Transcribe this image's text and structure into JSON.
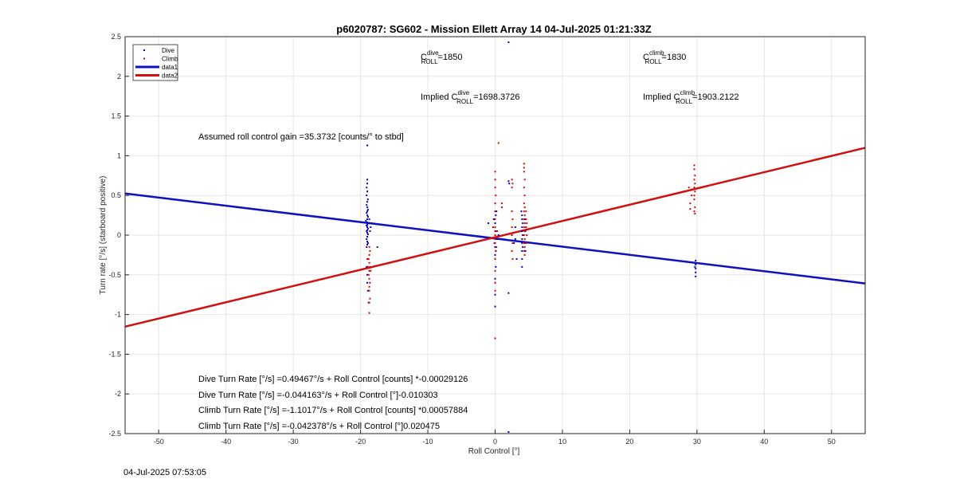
{
  "chart_data": {
    "type": "scatter",
    "title": "p6020787: SG602 - Mission Ellett Array 14 04-Jul-2025 01:21:33Z",
    "xlabel": "Roll Control [°]",
    "ylabel": "Turn rate [°/s] (starboard positive)",
    "xlim": [
      -55,
      55
    ],
    "ylim": [
      -2.5,
      2.5
    ],
    "xticks": [
      -50,
      -40,
      -30,
      -20,
      -10,
      0,
      10,
      20,
      30,
      40,
      50
    ],
    "yticks": [
      -2.5,
      -2,
      -1.5,
      -1,
      -0.5,
      0,
      0.5,
      1,
      1.5,
      2,
      2.5
    ],
    "grid": true,
    "legend_position": "top-left",
    "colors": {
      "dive": "#0000cc",
      "climb": "#dd0000",
      "data1": "#1010c0",
      "data2": "#d01010"
    },
    "legend": [
      {
        "label": "Dive",
        "kind": "point",
        "color": "#0000cc"
      },
      {
        "label": "Climb",
        "kind": "point",
        "color": "#dd0000"
      },
      {
        "label": "data1",
        "kind": "line",
        "color": "#1010c0"
      },
      {
        "label": "data2",
        "kind": "line",
        "color": "#d01010"
      }
    ],
    "series": [
      {
        "name": "Dive",
        "kind": "scatter",
        "color": "#0000cc",
        "points": [
          [
            -19,
            1.13
          ],
          [
            -19,
            0.7
          ],
          [
            -19,
            0.65
          ],
          [
            -19.1,
            0.6
          ],
          [
            -19,
            0.55
          ],
          [
            -19.1,
            0.5
          ],
          [
            -18.9,
            0.45
          ],
          [
            -19,
            0.42
          ],
          [
            -19.1,
            0.38
          ],
          [
            -19,
            0.35
          ],
          [
            -18.9,
            0.32
          ],
          [
            -19,
            0.3
          ],
          [
            -19.1,
            0.28
          ],
          [
            -19,
            0.25
          ],
          [
            -18.9,
            0.23
          ],
          [
            -19,
            0.2
          ],
          [
            -19.2,
            0.18
          ],
          [
            -19,
            0.16
          ],
          [
            -18.8,
            0.15
          ],
          [
            -19,
            0.13
          ],
          [
            -19.1,
            0.12
          ],
          [
            -19,
            0.1
          ],
          [
            -18.9,
            0.08
          ],
          [
            -19,
            0.06
          ],
          [
            -19.1,
            0.05
          ],
          [
            -19,
            0.03
          ],
          [
            -18.9,
            0.01
          ],
          [
            -19,
            -0.02
          ],
          [
            -19.1,
            -0.05
          ],
          [
            -19,
            -0.08
          ],
          [
            -18.9,
            -0.1
          ],
          [
            -19,
            -0.12
          ],
          [
            -19.1,
            -0.15
          ],
          [
            -18.5,
            0.1
          ],
          [
            -18.6,
            0.05
          ],
          [
            -18.7,
            0.2
          ],
          [
            -18.4,
            0.15
          ],
          [
            -17.5,
            -0.15
          ],
          [
            -19,
            -0.3
          ],
          [
            -19,
            -0.5
          ],
          [
            -18.9,
            -0.7
          ],
          [
            -18.8,
            -0.85
          ],
          [
            -19,
            -0.6
          ],
          [
            -19.1,
            -0.4
          ],
          [
            0,
            0.15
          ],
          [
            0,
            0.1
          ],
          [
            0.1,
            0.05
          ],
          [
            0,
            0.0
          ],
          [
            0,
            -0.05
          ],
          [
            -0.1,
            -0.1
          ],
          [
            0,
            -0.15
          ],
          [
            0.1,
            -0.2
          ],
          [
            0,
            -0.25
          ],
          [
            0,
            -0.3
          ],
          [
            0.1,
            -0.4
          ],
          [
            0,
            -0.55
          ],
          [
            0,
            -0.6
          ],
          [
            0,
            -0.75
          ],
          [
            0,
            -0.9
          ],
          [
            0.2,
            0.3
          ],
          [
            0.1,
            0.25
          ],
          [
            -0.2,
            0.2
          ],
          [
            -1,
            0.15
          ],
          [
            0.3,
            -0.05
          ],
          [
            0.5,
            0.0
          ],
          [
            2,
            2.43
          ],
          [
            2,
            0.68
          ],
          [
            2.1,
            0.65
          ],
          [
            2,
            -0.73
          ],
          [
            2,
            -2.48
          ],
          [
            3,
            0.1
          ],
          [
            2.8,
            -0.1
          ],
          [
            3.2,
            -0.3
          ],
          [
            3,
            -0.05
          ],
          [
            4,
            0.25
          ],
          [
            4,
            0.2
          ],
          [
            4.1,
            0.15
          ],
          [
            4,
            0.1
          ],
          [
            4,
            0.05
          ],
          [
            4.1,
            0.0
          ],
          [
            4,
            -0.05
          ],
          [
            4,
            -0.1
          ],
          [
            4.1,
            -0.15
          ],
          [
            4,
            -0.2
          ],
          [
            4,
            -0.3
          ],
          [
            4,
            -0.4
          ],
          [
            3.9,
            0.3
          ],
          [
            4.5,
            0.05
          ],
          [
            4.4,
            -0.1
          ],
          [
            4.6,
            0.1
          ],
          [
            4.5,
            -0.2
          ],
          [
            4.4,
            0.2
          ],
          [
            29.8,
            -0.32
          ],
          [
            29.8,
            -0.37
          ],
          [
            29.8,
            -0.42
          ],
          [
            29.8,
            -0.47
          ],
          [
            29.8,
            -0.52
          ],
          [
            29.7,
            -0.4
          ]
        ]
      },
      {
        "name": "Climb",
        "kind": "scatter",
        "color": "#dd0000",
        "points": [
          [
            -18.7,
            -0.15
          ],
          [
            -18.6,
            -0.2
          ],
          [
            -18.7,
            -0.25
          ],
          [
            -18.8,
            -0.3
          ],
          [
            -18.7,
            -0.35
          ],
          [
            -18.6,
            -0.4
          ],
          [
            -18.7,
            -0.45
          ],
          [
            -18.8,
            -0.5
          ],
          [
            -18.7,
            -0.55
          ],
          [
            -18.6,
            -0.6
          ],
          [
            -18.7,
            -0.65
          ],
          [
            -18.7,
            -0.7
          ],
          [
            -18.6,
            -0.8
          ],
          [
            -18.7,
            -0.85
          ],
          [
            -18.7,
            -0.98
          ],
          [
            -18.9,
            -0.4
          ],
          [
            -19,
            -0.3
          ],
          [
            -18.5,
            -0.45
          ],
          [
            0,
            0.8
          ],
          [
            0,
            0.7
          ],
          [
            0,
            0.6
          ],
          [
            0.1,
            0.5
          ],
          [
            0,
            0.4
          ],
          [
            0,
            0.3
          ],
          [
            0,
            0.2
          ],
          [
            0,
            0.1
          ],
          [
            0,
            0.05
          ],
          [
            0,
            0.0
          ],
          [
            0,
            -0.05
          ],
          [
            0,
            -0.1
          ],
          [
            0.1,
            -0.2
          ],
          [
            0,
            -0.3
          ],
          [
            0,
            -0.45
          ],
          [
            0,
            -0.6
          ],
          [
            0,
            -0.7
          ],
          [
            0,
            -1.3
          ],
          [
            0.5,
            1.16
          ],
          [
            0.3,
            0.05
          ],
          [
            -0.3,
            0.1
          ],
          [
            0.2,
            -0.15
          ],
          [
            1,
            0.4
          ],
          [
            1,
            0.35
          ],
          [
            2.5,
            0.7
          ],
          [
            2.6,
            0.65
          ],
          [
            2.5,
            0.6
          ],
          [
            2.5,
            0.3
          ],
          [
            2.6,
            0.2
          ],
          [
            2.5,
            0.1
          ],
          [
            2.5,
            0.0
          ],
          [
            2.6,
            -0.1
          ],
          [
            2.5,
            -0.2
          ],
          [
            2.6,
            -0.3
          ],
          [
            4.3,
            0.9
          ],
          [
            4.3,
            0.85
          ],
          [
            4.3,
            0.8
          ],
          [
            4.4,
            0.7
          ],
          [
            4.3,
            0.6
          ],
          [
            4.4,
            0.5
          ],
          [
            4.3,
            0.4
          ],
          [
            4.4,
            0.35
          ],
          [
            4.3,
            0.3
          ],
          [
            4.4,
            0.25
          ],
          [
            4.3,
            0.2
          ],
          [
            4.4,
            0.15
          ],
          [
            4.3,
            0.1
          ],
          [
            4.4,
            0.05
          ],
          [
            4.3,
            0.0
          ],
          [
            4.4,
            -0.05
          ],
          [
            4.3,
            -0.1
          ],
          [
            4.4,
            -0.15
          ],
          [
            4.3,
            -0.2
          ],
          [
            4.4,
            -0.25
          ],
          [
            4.6,
            0.3
          ],
          [
            4.6,
            0.2
          ],
          [
            4.6,
            0.1
          ],
          [
            4.7,
            0.0
          ],
          [
            4.6,
            -0.1
          ],
          [
            4.7,
            0.15
          ],
          [
            29.6,
            0.88
          ],
          [
            29.6,
            0.83
          ],
          [
            29.7,
            0.75
          ],
          [
            29.6,
            0.7
          ],
          [
            29.7,
            0.65
          ],
          [
            29.6,
            0.6
          ],
          [
            29.7,
            0.55
          ],
          [
            29.6,
            0.5
          ],
          [
            29.6,
            0.45
          ],
          [
            29.7,
            0.35
          ],
          [
            29.6,
            0.3
          ],
          [
            29.7,
            0.27
          ],
          [
            29,
            0.4
          ],
          [
            29,
            0.33
          ],
          [
            28.8,
            0.6
          ],
          [
            29.2,
            0.5
          ]
        ]
      },
      {
        "name": "data1",
        "kind": "line",
        "color": "#1010c0",
        "x": [
          -55,
          55
        ],
        "y": [
          0.525,
          -0.609
        ]
      },
      {
        "name": "data2",
        "kind": "line",
        "color": "#d01010",
        "x": [
          -55,
          55
        ],
        "y": [
          -1.153,
          1.1
        ]
      }
    ]
  },
  "annotations": {
    "cdive_base": "C",
    "cdive_sup": "dive",
    "cdive_sub": "ROLL",
    "cdive_value": "=1850",
    "cclimb_base": "C",
    "cclimb_sup": "climb",
    "cclimb_sub": "ROLL",
    "cclimb_value": "=1830",
    "implied_dive_prefix": "Implied C",
    "implied_dive_sup": "dive",
    "implied_dive_sub": "ROLL",
    "implied_dive_value": "=1698.3726",
    "implied_climb_prefix": "Implied C",
    "implied_climb_sup": "climb",
    "implied_climb_sub": "ROLL",
    "implied_climb_value": "=1903.2122",
    "gain": "Assumed roll control gain =35.3732 [counts/° to stbd]",
    "eq1": "Dive Turn Rate [°/s] =0.49467°/s + Roll Control [counts] *-0.00029126",
    "eq2": "Dive Turn Rate [°/s] =-0.044163°/s + Roll Control [°]-0.010303",
    "eq3": "Climb Turn Rate [°/s] =-1.1017°/s + Roll Control [counts] *0.00057884",
    "eq4": "Climb Turn Rate [°/s] =-0.042378°/s + Roll Control [°]0.020475"
  },
  "footer": {
    "timestamp": "04-Jul-2025 07:53:05"
  }
}
